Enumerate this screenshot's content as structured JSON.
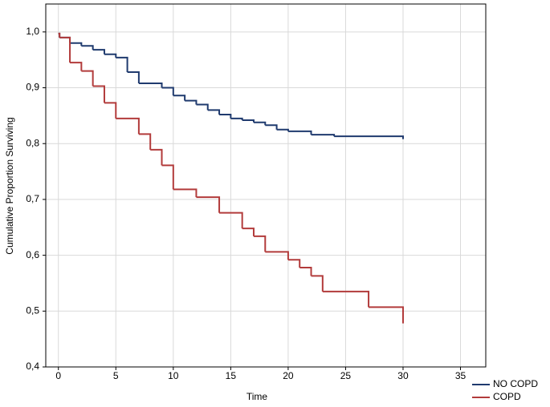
{
  "chart_data": {
    "type": "line",
    "step": "post",
    "xlabel": "Time",
    "ylabel": "Cumulative Proportion Surviving",
    "xlim": [
      -1.1,
      37.2
    ],
    "ylim": [
      0.4,
      1.05
    ],
    "xticks": [
      0,
      5,
      10,
      15,
      20,
      25,
      30,
      35
    ],
    "yticks": [
      {
        "value": 0.4,
        "label": "0,4"
      },
      {
        "value": 0.5,
        "label": "0,5"
      },
      {
        "value": 0.6,
        "label": "0,6"
      },
      {
        "value": 0.7,
        "label": "0,7"
      },
      {
        "value": 0.8,
        "label": "0,8"
      },
      {
        "value": 0.9,
        "label": "0,9"
      },
      {
        "value": 1.0,
        "label": "1,0"
      }
    ],
    "grid": true,
    "legend": "lower right",
    "series": [
      {
        "name": "NO COPD",
        "color": "#1f3a6e",
        "x": [
          0,
          0.1,
          1,
          2,
          3,
          4,
          5,
          6,
          7,
          9,
          10,
          11,
          12,
          13,
          14,
          15,
          16,
          17,
          18,
          19,
          20,
          22,
          24,
          30
        ],
        "values": [
          0.997,
          0.99,
          0.98,
          0.975,
          0.968,
          0.96,
          0.954,
          0.928,
          0.908,
          0.9,
          0.886,
          0.877,
          0.87,
          0.86,
          0.852,
          0.845,
          0.842,
          0.838,
          0.833,
          0.825,
          0.822,
          0.816,
          0.813,
          0.808
        ]
      },
      {
        "name": "COPD",
        "color": "#b23b3b",
        "x": [
          0,
          0.1,
          1,
          2,
          3,
          4,
          5,
          7,
          8,
          9,
          10,
          12,
          14,
          16,
          17,
          18,
          20,
          21,
          22,
          23,
          27,
          30
        ],
        "values": [
          0.997,
          0.99,
          0.945,
          0.93,
          0.903,
          0.873,
          0.845,
          0.817,
          0.789,
          0.761,
          0.718,
          0.704,
          0.676,
          0.648,
          0.634,
          0.606,
          0.592,
          0.578,
          0.563,
          0.535,
          0.507,
          0.478
        ]
      }
    ]
  }
}
